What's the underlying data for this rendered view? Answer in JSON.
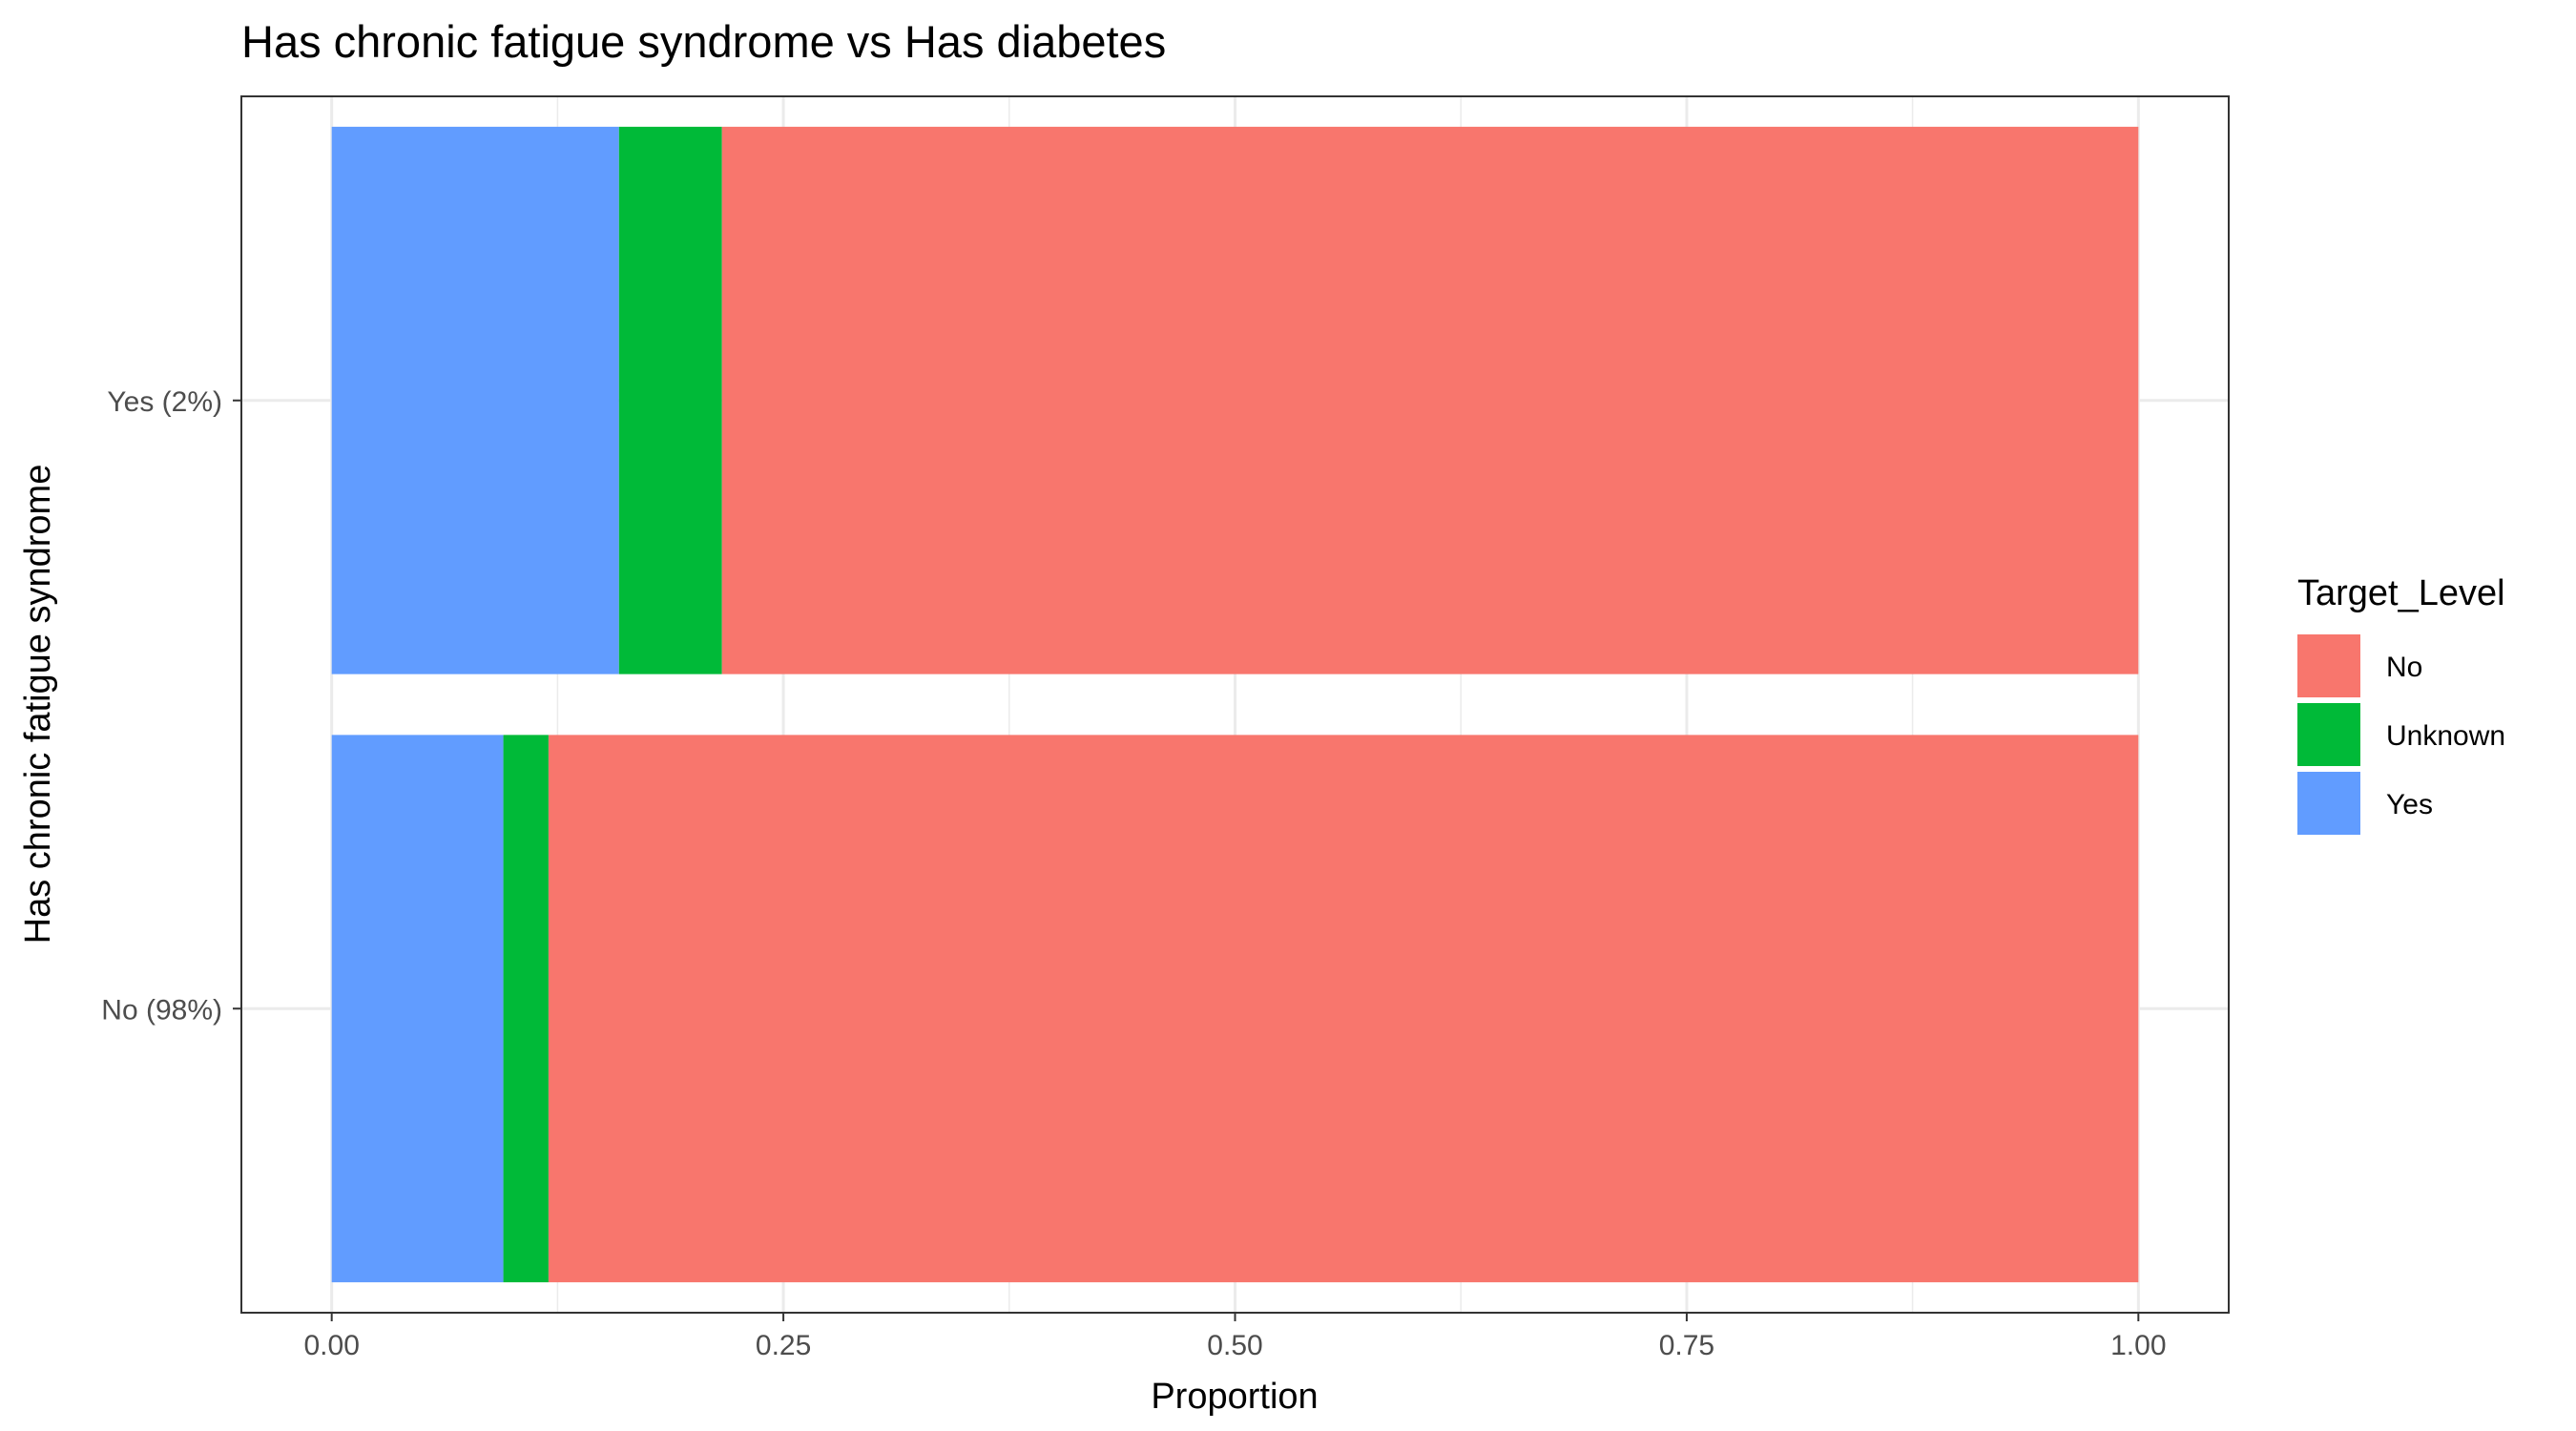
{
  "chart_data": {
    "type": "bar",
    "orientation": "horizontal",
    "stacked": true,
    "title": "Has chronic fatigue syndrome vs Has diabetes",
    "xlabel": "Proportion",
    "ylabel": "Has chronic fatigue syndrome",
    "xlim": [
      -0.05,
      1.05
    ],
    "x_ticks": [
      "0.00",
      "0.25",
      "0.50",
      "0.75",
      "1.00"
    ],
    "x_tick_values": [
      0,
      0.25,
      0.5,
      0.75,
      1.0
    ],
    "grid": true,
    "legend_position": "right",
    "categories": [
      "No (98%)",
      "Yes (2%)"
    ],
    "stack_order": [
      "Yes",
      "Unknown",
      "No"
    ],
    "legend": {
      "title": "Target_Level",
      "entries": [
        "No",
        "Unknown",
        "Yes"
      ]
    },
    "series": [
      {
        "name": "Yes",
        "color": "#619CFF",
        "values": [
          0.095,
          0.159
        ]
      },
      {
        "name": "Unknown",
        "color": "#00BA38",
        "values": [
          0.025,
          0.057
        ]
      },
      {
        "name": "No",
        "color": "#F8766D",
        "values": [
          0.88,
          0.784
        ]
      }
    ]
  }
}
